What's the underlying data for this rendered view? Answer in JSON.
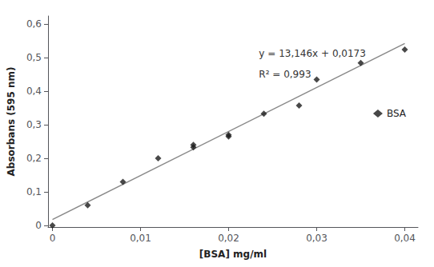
{
  "chart_data": {
    "type": "scatter",
    "xlabel": "[BSA] mg/ml",
    "ylabel": "Absorbans (595 nm)",
    "series": [
      {
        "name": "BSA",
        "type": "scatter",
        "marker": "diamond",
        "color": "#1a1a1a",
        "x": [
          0,
          0.004,
          0.008,
          0.012,
          0.016,
          0.016,
          0.02,
          0.02,
          0.024,
          0.028,
          0.03,
          0.035,
          0.04
        ],
        "values": [
          0.0,
          0.06,
          0.13,
          0.2,
          0.233,
          0.24,
          0.265,
          0.27,
          0.333,
          0.358,
          0.435,
          0.485,
          0.525
        ]
      },
      {
        "type": "line",
        "color": "#888888",
        "x": [
          0,
          0.04
        ],
        "values": [
          0.0173,
          0.54314
        ]
      }
    ],
    "annotations": [
      "y = 13,146x + 0,0173",
      "R² = 0,993"
    ],
    "xlim": [
      -0.0005,
      0.0415
    ],
    "ylim": [
      -0.005,
      0.625
    ],
    "xticks": [
      0,
      {
        "value": 0.01,
        "label": "0,01"
      },
      {
        "value": 0.02,
        "label": "0,02"
      },
      {
        "value": 0.03,
        "label": "0,03"
      },
      {
        "value": 0.04,
        "label": "0,04"
      }
    ],
    "yticks": [
      0,
      {
        "value": 0.1,
        "label": "0,1"
      },
      {
        "value": 0.2,
        "label": "0,2"
      },
      {
        "value": 0.3,
        "label": "0,3"
      },
      {
        "value": 0.4,
        "label": "0,4"
      },
      {
        "value": 0.5,
        "label": "0,5"
      },
      {
        "value": 0.6,
        "label": "0,6"
      }
    ],
    "grid": false,
    "legend": "right"
  }
}
